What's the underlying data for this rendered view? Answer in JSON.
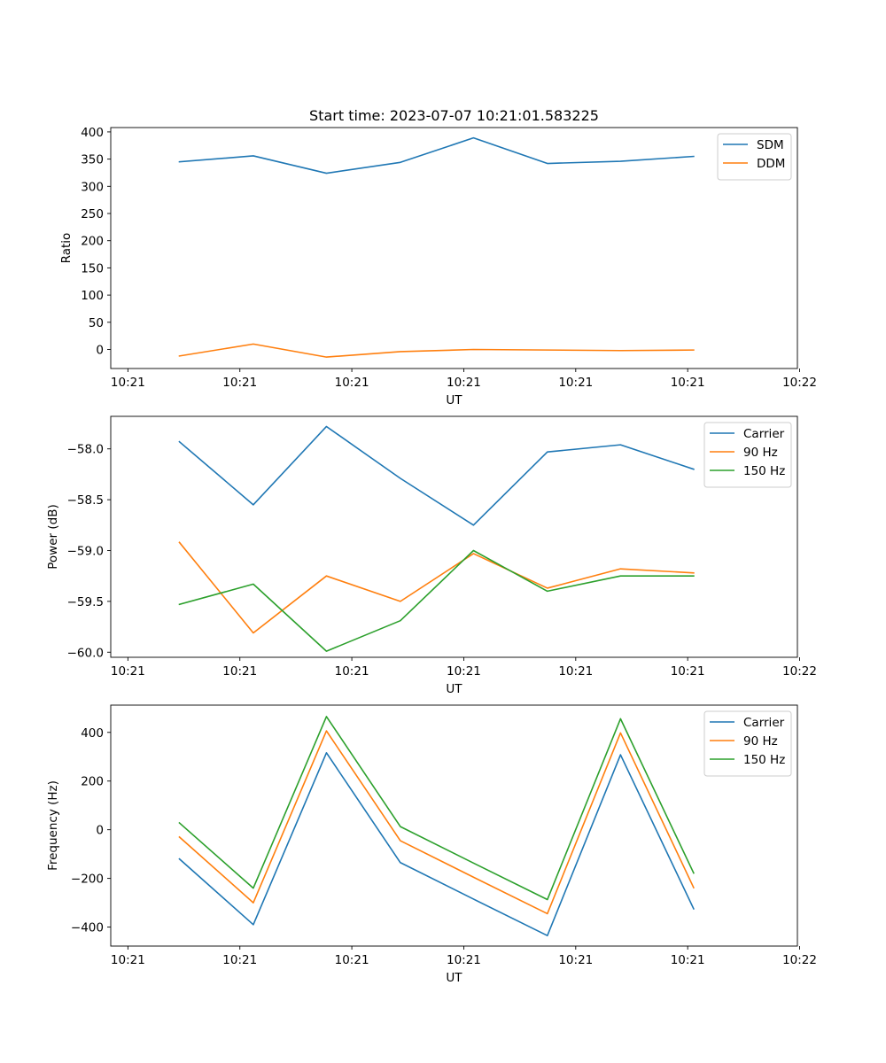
{
  "figure_title": "Start time: 2023-07-07 10:21:01.583225",
  "chart_data": [
    {
      "type": "line",
      "title": "Start time: 2023-07-07 10:21:01.583225",
      "xlabel": "UT",
      "ylabel": "Ratio",
      "xlim": [
        -0.23,
        8.97
      ],
      "ylim": [
        -35,
        408
      ],
      "x": [
        0.69,
        1.68,
        2.66,
        3.65,
        4.63,
        5.62,
        6.6,
        7.58
      ],
      "x_ticks": [
        0,
        1.5,
        3,
        4.5,
        6,
        7.5,
        9
      ],
      "x_tick_labels": [
        "10:21",
        "10:21",
        "10:21",
        "10:21",
        "10:21",
        "10:21",
        "10:22"
      ],
      "y_ticks": [
        0,
        50,
        100,
        150,
        200,
        250,
        300,
        350,
        400
      ],
      "y_tick_labels": [
        "0",
        "50",
        "100",
        "150",
        "200",
        "250",
        "300",
        "350",
        "400"
      ],
      "legend_position": "top-right",
      "series": [
        {
          "name": "SDM",
          "color": "#1f77b4",
          "values": [
            345,
            356,
            324,
            344,
            389,
            342,
            346,
            355
          ]
        },
        {
          "name": "DDM",
          "color": "#ff7f0e",
          "values": [
            -12,
            10,
            -14,
            -4,
            0,
            -1,
            -2,
            -1
          ]
        }
      ]
    },
    {
      "type": "line",
      "title": "",
      "xlabel": "UT",
      "ylabel": "Power (dB)",
      "xlim": [
        -0.23,
        8.97
      ],
      "ylim": [
        -60.05,
        -57.68
      ],
      "x": [
        0.69,
        1.68,
        2.66,
        3.65,
        4.63,
        5.62,
        6.6,
        7.58
      ],
      "x_ticks": [
        0,
        1.5,
        3,
        4.5,
        6,
        7.5,
        9
      ],
      "x_tick_labels": [
        "10:21",
        "10:21",
        "10:21",
        "10:21",
        "10:21",
        "10:21",
        "10:22"
      ],
      "y_ticks": [
        -60.0,
        -59.5,
        -59.0,
        -58.5,
        -58.0
      ],
      "y_tick_labels": [
        "−60.0",
        "−59.5",
        "−59.0",
        "−58.5",
        "−58.0"
      ],
      "legend_position": "top-right",
      "series": [
        {
          "name": "Carrier",
          "color": "#1f77b4",
          "values": [
            -57.93,
            -58.55,
            -57.78,
            -58.29,
            -58.75,
            -58.03,
            -57.96,
            -58.2
          ]
        },
        {
          "name": "90 Hz",
          "color": "#ff7f0e",
          "values": [
            -58.92,
            -59.81,
            -59.25,
            -59.5,
            -59.03,
            -59.37,
            -59.18,
            -59.22
          ]
        },
        {
          "name": "150 Hz",
          "color": "#2ca02c",
          "values": [
            -59.53,
            -59.33,
            -59.99,
            -59.69,
            -59.0,
            -59.4,
            -59.25,
            -59.25
          ]
        }
      ]
    },
    {
      "type": "line",
      "title": "",
      "xlabel": "UT",
      "ylabel": "Frequency (Hz)",
      "xlim": [
        -0.23,
        8.97
      ],
      "ylim": [
        -478,
        512
      ],
      "x": [
        0.69,
        1.68,
        2.66,
        3.65,
        4.63,
        5.62,
        6.6,
        7.58
      ],
      "x_ticks": [
        0,
        1.5,
        3,
        4.5,
        6,
        7.5,
        9
      ],
      "x_tick_labels": [
        "10:21",
        "10:21",
        "10:21",
        "10:21",
        "10:21",
        "10:21",
        "10:22"
      ],
      "y_ticks": [
        -400,
        -200,
        0,
        200,
        400
      ],
      "y_tick_labels": [
        "−400",
        "−200",
        "0",
        "200",
        "400"
      ],
      "legend_position": "top-right",
      "series": [
        {
          "name": "Carrier",
          "color": "#1f77b4",
          "values": [
            -120,
            -390,
            316,
            -135,
            -285,
            -435,
            308,
            -325
          ]
        },
        {
          "name": "90 Hz",
          "color": "#ff7f0e",
          "values": [
            -30,
            -300,
            406,
            -45,
            -195,
            -345,
            398,
            -238
          ]
        },
        {
          "name": "150 Hz",
          "color": "#2ca02c",
          "values": [
            28,
            -240,
            465,
            13,
            -137,
            -287,
            456,
            -178
          ]
        }
      ]
    }
  ]
}
